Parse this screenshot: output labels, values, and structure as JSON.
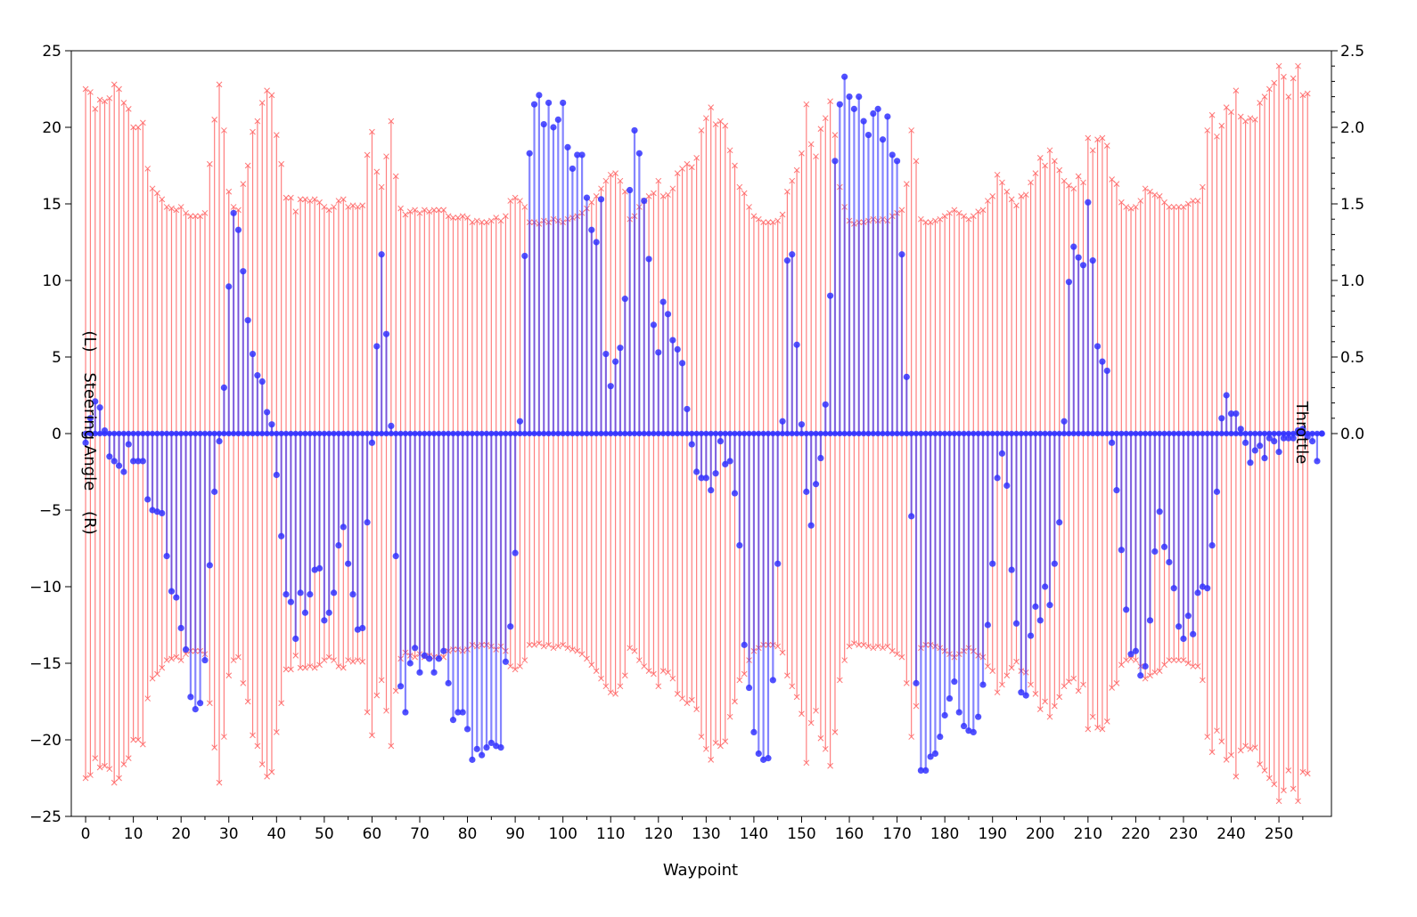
{
  "chart_data": {
    "type": "stem",
    "xlabel": "Waypoint",
    "ylabel_left": "(L)    Steering Angle    (R)",
    "ylabel_right": "Throttle",
    "xlim": [
      -3,
      261
    ],
    "ylim_left": [
      -25,
      25
    ],
    "ylim_right": [
      -2.5,
      2.5
    ],
    "x_ticks": [
      0,
      10,
      20,
      30,
      40,
      50,
      60,
      70,
      80,
      90,
      100,
      110,
      120,
      130,
      140,
      150,
      160,
      170,
      180,
      190,
      200,
      210,
      220,
      230,
      240,
      250
    ],
    "y_ticks_left": [
      -25,
      -20,
      -15,
      -10,
      -5,
      0,
      5,
      10,
      15,
      20,
      25
    ],
    "y_ticks_right": [
      0.0,
      0.5,
      1.0,
      1.5,
      2.0,
      2.5
    ],
    "grid": false,
    "colors": {
      "steering": "#3333ff",
      "throttle": "#ff5555"
    },
    "steering_angle": [
      -0.6,
      1.0,
      2.1,
      1.7,
      0.2,
      -1.5,
      -1.8,
      -2.1,
      -2.5,
      -0.7,
      -1.8,
      -1.8,
      -1.8,
      -4.3,
      -5.0,
      -5.1,
      -5.2,
      -8.0,
      -10.3,
      -10.7,
      -12.7,
      -14.1,
      -17.2,
      -18.0,
      -17.6,
      -14.8,
      -8.6,
      -3.8,
      -0.5,
      3.0,
      9.6,
      14.4,
      13.3,
      10.6,
      7.4,
      5.2,
      3.8,
      3.4,
      1.4,
      0.6,
      -2.7,
      -6.7,
      -10.5,
      -11.0,
      -13.4,
      -10.4,
      -11.7,
      -10.5,
      -8.9,
      -8.8,
      -12.2,
      -11.7,
      -10.4,
      -7.3,
      -6.1,
      -8.5,
      -10.5,
      -12.8,
      -12.7,
      -5.8,
      -0.6,
      5.7,
      11.7,
      6.5,
      0.5,
      -8.0,
      -16.5,
      -18.2,
      -15.0,
      -14.0,
      -15.6,
      -14.5,
      -14.7,
      -15.6,
      -14.7,
      -14.2,
      -16.3,
      -18.7,
      -18.2,
      -18.2,
      -19.3,
      -21.3,
      -20.6,
      -21.0,
      -20.5,
      -20.2,
      -20.4,
      -20.5,
      -14.9,
      -12.6,
      -7.8,
      0.8,
      11.6,
      18.3,
      21.5,
      22.1,
      20.2,
      21.6,
      20.0,
      20.5,
      21.6,
      18.7,
      17.3,
      18.2,
      18.2,
      15.4,
      13.3,
      12.5,
      15.3,
      5.2,
      3.1,
      4.7,
      5.6,
      8.8,
      15.9,
      19.8,
      18.3,
      15.2,
      11.4,
      7.1,
      5.3,
      8.6,
      7.8,
      6.1,
      5.5,
      4.6,
      1.6,
      -0.7,
      -2.5,
      -2.9,
      -2.9,
      -3.7,
      -2.6,
      -0.5,
      -2.0,
      -1.8,
      -3.9,
      -7.3,
      -13.8,
      -16.6,
      -19.5,
      -20.9,
      -21.3,
      -21.2,
      -16.1,
      -8.5,
      0.8,
      11.3,
      11.7,
      5.8,
      0.6,
      -3.8,
      -6.0,
      -3.3,
      -1.6,
      1.9,
      9.0,
      17.8,
      21.5,
      23.3,
      22.0,
      21.2,
      22.0,
      20.4,
      19.5,
      20.9,
      21.2,
      19.2,
      20.7,
      18.2,
      17.8,
      11.7,
      3.7,
      -5.4,
      -16.3,
      -22.0,
      -22.0,
      -21.1,
      -20.9,
      -19.8,
      -18.4,
      -17.3,
      -16.2,
      -18.2,
      -19.1,
      -19.4,
      -19.5,
      -18.5,
      -16.4,
      -12.5,
      -8.5,
      -2.9,
      -1.3,
      -3.4,
      -8.9,
      -12.4,
      -16.9,
      -17.1,
      -13.2,
      -11.3,
      -12.2,
      -10.0,
      -11.2,
      -8.5,
      -5.8,
      0.8,
      9.9,
      12.2,
      11.5,
      11.0,
      15.1,
      11.3,
      5.7,
      4.7,
      4.1,
      -0.6,
      -3.7,
      -7.6,
      -11.5,
      -14.4,
      -14.2,
      -15.8,
      -15.2,
      -12.2,
      -7.7,
      -5.1,
      -7.4,
      -8.4,
      -10.1,
      -12.6,
      -13.4,
      -11.9,
      -13.1,
      -10.4,
      -10.0,
      -10.1,
      -7.3,
      -3.8,
      1.0,
      2.5,
      1.3,
      1.3,
      0.3,
      -0.6,
      -1.9,
      -1.1,
      -0.8,
      -1.6,
      -0.3,
      -0.5,
      -1.2,
      -0.3,
      -0.3,
      -0.3,
      0.2,
      0.3,
      -0.2,
      -0.5,
      -1.8,
      0.0
    ],
    "throttle": [
      2.25,
      2.23,
      2.12,
      2.18,
      2.17,
      2.19,
      2.28,
      2.25,
      2.16,
      2.12,
      2.0,
      2.0,
      2.03,
      1.73,
      1.6,
      1.57,
      1.53,
      1.48,
      1.47,
      1.46,
      1.48,
      1.44,
      1.42,
      1.42,
      1.42,
      1.44,
      1.76,
      2.05,
      2.28,
      1.98,
      1.58,
      1.48,
      1.46,
      1.63,
      1.75,
      1.97,
      2.04,
      2.16,
      2.24,
      2.21,
      1.95,
      1.76,
      1.54,
      1.54,
      1.45,
      1.53,
      1.53,
      1.52,
      1.53,
      1.51,
      1.48,
      1.46,
      1.48,
      1.52,
      1.53,
      1.48,
      1.49,
      1.48,
      1.49,
      1.82,
      1.97,
      1.71,
      1.61,
      1.81,
      2.04,
      1.68,
      1.47,
      1.43,
      1.45,
      1.46,
      1.44,
      1.46,
      1.45,
      1.46,
      1.46,
      1.46,
      1.42,
      1.41,
      1.41,
      1.42,
      1.41,
      1.38,
      1.39,
      1.38,
      1.38,
      1.39,
      1.41,
      1.39,
      1.42,
      1.52,
      1.54,
      1.52,
      1.48,
      1.38,
      1.38,
      1.37,
      1.39,
      1.38,
      1.4,
      1.39,
      1.38,
      1.4,
      1.41,
      1.42,
      1.44,
      1.47,
      1.51,
      1.55,
      1.6,
      1.65,
      1.69,
      1.7,
      1.65,
      1.58,
      1.4,
      1.42,
      1.48,
      1.52,
      1.55,
      1.57,
      1.65,
      1.55,
      1.56,
      1.6,
      1.7,
      1.73,
      1.76,
      1.74,
      1.8,
      1.98,
      2.06,
      2.13,
      2.02,
      2.04,
      2.01,
      1.85,
      1.75,
      1.61,
      1.57,
      1.48,
      1.42,
      1.4,
      1.38,
      1.38,
      1.38,
      1.39,
      1.43,
      1.58,
      1.65,
      1.72,
      1.83,
      2.15,
      1.89,
      1.81,
      1.99,
      2.06,
      2.17,
      1.95,
      1.61,
      1.48,
      1.39,
      1.37,
      1.38,
      1.38,
      1.39,
      1.4,
      1.39,
      1.4,
      1.39,
      1.42,
      1.44,
      1.46,
      1.63,
      1.98,
      1.78,
      1.4,
      1.38,
      1.38,
      1.39,
      1.4,
      1.42,
      1.44,
      1.46,
      1.44,
      1.42,
      1.4,
      1.42,
      1.45,
      1.46,
      1.52,
      1.55,
      1.69,
      1.64,
      1.58,
      1.53,
      1.49,
      1.55,
      1.56,
      1.64,
      1.7,
      1.8,
      1.75,
      1.85,
      1.78,
      1.72,
      1.65,
      1.62,
      1.6,
      1.68,
      1.64,
      1.93,
      1.85,
      1.92,
      1.93,
      1.88,
      1.66,
      1.63,
      1.51,
      1.48,
      1.47,
      1.48,
      1.52,
      1.6,
      1.58,
      1.56,
      1.55,
      1.51,
      1.48,
      1.48,
      1.48,
      1.48,
      1.5,
      1.52,
      1.52,
      1.61,
      1.98,
      2.08,
      1.94,
      2.01,
      2.13,
      2.1,
      2.24,
      2.07,
      2.04,
      2.06,
      2.05,
      2.16,
      2.2,
      2.25,
      2.29,
      2.4,
      2.33,
      2.2,
      2.32,
      2.4,
      2.21,
      2.22
    ]
  }
}
